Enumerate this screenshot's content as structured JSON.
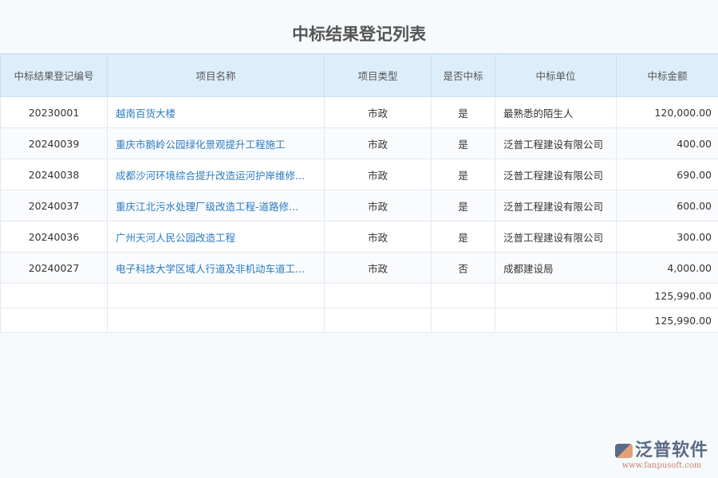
{
  "title": "中标结果登记列表",
  "columns": [
    "中标结果登记编号",
    "项目名称",
    "项目类型",
    "是否中标",
    "中标单位",
    "中标金额"
  ],
  "rows": [
    {
      "id": "20230001",
      "name": "越南百货大楼",
      "type": "市政",
      "won": "是",
      "unit": "最熟悉的陌生人",
      "amount": "120,000.00"
    },
    {
      "id": "20240039",
      "name": "重庆市鹅岭公园绿化景观提升工程施工",
      "type": "市政",
      "won": "是",
      "unit": "泛普工程建设有限公司",
      "amount": "400.00"
    },
    {
      "id": "20240038",
      "name": "成都沙河环境综合提升改造运河护岸维修...",
      "type": "市政",
      "won": "是",
      "unit": "泛普工程建设有限公司",
      "amount": "690.00"
    },
    {
      "id": "20240037",
      "name": "重庆江北污水处理厂级改造工程-道路修...",
      "type": "市政",
      "won": "是",
      "unit": "泛普工程建设有限公司",
      "amount": "600.00"
    },
    {
      "id": "20240036",
      "name": "广州天河人民公园改造工程",
      "type": "市政",
      "won": "是",
      "unit": "泛普工程建设有限公司",
      "amount": "300.00"
    },
    {
      "id": "20240027",
      "name": "电子科技大学区域人行道及非机动车道工...",
      "type": "市政",
      "won": "否",
      "unit": "成都建设局",
      "amount": "4,000.00"
    }
  ],
  "totals": [
    "125,990.00",
    "125,990.00"
  ],
  "logo": {
    "name": "泛普软件",
    "url": "www.fanpusoft.com"
  }
}
